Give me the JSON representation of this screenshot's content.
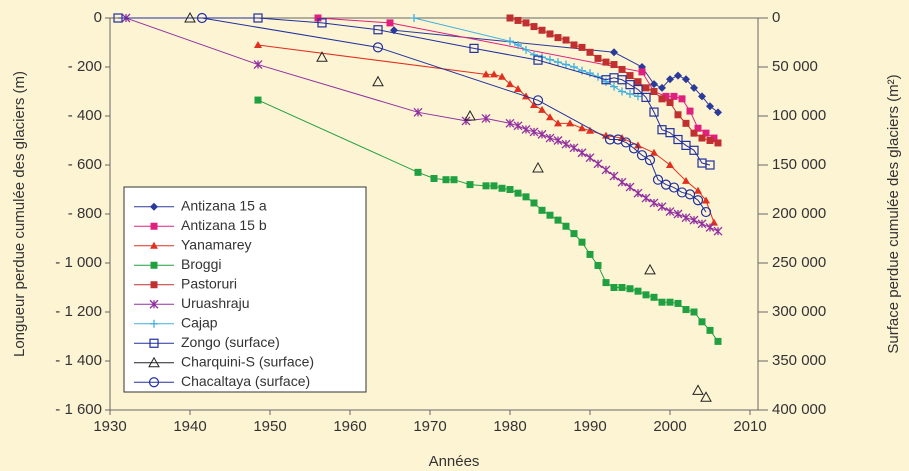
{
  "chart_data": {
    "type": "line",
    "xlabel": "Années",
    "ylabel": "Longueur perdue cumulée des glaciers (m)",
    "y2label": "Surface perdue cumulée des glaciers (m²)",
    "xlim": [
      1930,
      2011
    ],
    "xticks": [
      1930,
      1940,
      1950,
      1960,
      1970,
      1980,
      1990,
      2000,
      2010
    ],
    "ylim": [
      -1600,
      0
    ],
    "yticks": [
      {
        "value": -1600,
        "label": "- 1 600"
      },
      {
        "value": -1400,
        "label": "- 1 400"
      },
      {
        "value": -1200,
        "label": "- 1 200"
      },
      {
        "value": -1000,
        "label": "- 1 000"
      },
      {
        "value": -800,
        "label": "- 800"
      },
      {
        "value": -600,
        "label": "- 600"
      },
      {
        "value": -400,
        "label": "- 400"
      },
      {
        "value": -200,
        "label": "- 200"
      },
      0
    ],
    "y2lim": [
      400000,
      0
    ],
    "y2ticks": [
      0,
      {
        "value": 50000,
        "label": "50 000"
      },
      {
        "value": 100000,
        "label": "100 000"
      },
      {
        "value": 150000,
        "label": "150 000"
      },
      {
        "value": 200000,
        "label": "200 000"
      },
      {
        "value": 250000,
        "label": "250 000"
      },
      {
        "value": 300000,
        "label": "300 000"
      },
      {
        "value": 350000,
        "label": "350 000"
      },
      {
        "value": 400000,
        "label": "400 000"
      }
    ],
    "legend": "lower left",
    "series": [
      {
        "name": "Antizana 15 a",
        "color": "#2b3a9a",
        "marker": "diamond",
        "line": true,
        "x": [
          1965.5,
          1993,
          1996.5,
          1998,
          1999,
          2000,
          2001,
          2002,
          2003,
          2004,
          2005,
          2006
        ],
        "values": [
          -50,
          -140,
          -200,
          -270,
          -285,
          -250,
          -235,
          -250,
          -285,
          -320,
          -360,
          -385
        ]
      },
      {
        "name": "Antizana 15 b",
        "color": "#e0207f",
        "marker": "square",
        "line": true,
        "x": [
          1956,
          1965,
          1996.5,
          1998,
          1999.5,
          2000.5,
          2001.5,
          2002.5,
          2003.5,
          2004.5,
          2005.5
        ],
        "values": [
          0,
          -20,
          -220,
          -300,
          -320,
          -320,
          -330,
          -380,
          -450,
          -470,
          -490
        ]
      },
      {
        "name": "Yanamarey",
        "color": "#e03020",
        "marker": "triangle",
        "line": true,
        "x": [
          1948.5,
          1977,
          1978,
          1979,
          1980,
          1981,
          1982,
          1983,
          1984,
          1985,
          1986,
          1987.5,
          1989,
          1990,
          1992,
          1994,
          1996,
          1998,
          2000,
          2002,
          2003.5,
          2004.5,
          2005.5
        ],
        "values": [
          -110,
          -230,
          -230,
          -240,
          -270,
          -290,
          -320,
          -355,
          -375,
          -405,
          -430,
          -430,
          -450,
          -460,
          -480,
          -490,
          -520,
          -550,
          -600,
          -665,
          -705,
          -745,
          -835
        ]
      },
      {
        "name": "Broggi",
        "color": "#20a040",
        "marker": "square",
        "line": true,
        "x": [
          1948.5,
          1968.5,
          1970.5,
          1972,
          1973,
          1975,
          1977,
          1978,
          1979,
          1980,
          1981,
          1982,
          1983,
          1984,
          1985,
          1986,
          1987,
          1988,
          1989,
          1990,
          1991,
          1992,
          1993,
          1994,
          1995,
          1996,
          1997,
          1998,
          1999,
          2000,
          2001,
          2002,
          2003,
          2004,
          2005,
          2006
        ],
        "values": [
          -335,
          -630,
          -655,
          -660,
          -660,
          -680,
          -685,
          -685,
          -695,
          -700,
          -715,
          -730,
          -755,
          -785,
          -805,
          -825,
          -850,
          -880,
          -915,
          -965,
          -1010,
          -1080,
          -1100,
          -1100,
          -1105,
          -1115,
          -1130,
          -1140,
          -1160,
          -1160,
          -1165,
          -1190,
          -1200,
          -1240,
          -1275,
          -1320
        ]
      },
      {
        "name": "Pastoruri",
        "color": "#c03030",
        "marker": "square",
        "line": true,
        "x": [
          1980,
          1981,
          1982,
          1983,
          1984,
          1985,
          1986,
          1987,
          1988,
          1989,
          1990,
          1991,
          1992,
          1993,
          1994,
          1995,
          1996,
          1997,
          1998,
          1999,
          2000,
          2001,
          2002,
          2003,
          2004,
          2005,
          2006
        ],
        "values": [
          0,
          -10,
          -20,
          -35,
          -50,
          -65,
          -80,
          -90,
          -110,
          -120,
          -140,
          -165,
          -180,
          -190,
          -210,
          -235,
          -260,
          -285,
          -300,
          -330,
          -345,
          -395,
          -430,
          -470,
          -490,
          -500,
          -510
        ]
      },
      {
        "name": "Uruashraju",
        "color": "#9030a0",
        "marker": "x",
        "line": true,
        "x": [
          1932,
          1948.5,
          1968.5,
          1974.5,
          1977,
          1980,
          1981,
          1982,
          1983,
          1984,
          1985,
          1986,
          1987,
          1988,
          1989,
          1990,
          1991,
          1992,
          1993,
          1994,
          1995,
          1996,
          1997,
          1998,
          1999,
          2000,
          2001,
          2002,
          2003,
          2004,
          2005,
          2006
        ],
        "values": [
          0,
          -190,
          -385,
          -420,
          -410,
          -430,
          -440,
          -455,
          -465,
          -475,
          -490,
          -500,
          -515,
          -530,
          -550,
          -570,
          -595,
          -620,
          -645,
          -670,
          -690,
          -715,
          -735,
          -755,
          -770,
          -790,
          -800,
          -815,
          -825,
          -840,
          -855,
          -870
        ]
      },
      {
        "name": "Cajap",
        "color": "#40b0e0",
        "marker": "plus",
        "line": true,
        "x": [
          1968,
          1980,
          1981,
          1982,
          1983,
          1984,
          1985,
          1986,
          1987,
          1988,
          1989,
          1990,
          1991,
          1992,
          1993,
          1994,
          1995,
          1996
        ],
        "values": [
          0,
          -95,
          -110,
          -130,
          -150,
          -160,
          -170,
          -180,
          -190,
          -200,
          -215,
          -225,
          -240,
          -260,
          -280,
          -300,
          -310,
          -320
        ]
      },
      {
        "name": "Zongo (surface)",
        "color": "#2030a0",
        "marker": "open-square",
        "line": true,
        "axis": "y2",
        "x": [
          1931,
          1948.5,
          1956.5,
          1963.5,
          1975.5,
          1983.5,
          1992,
          1993,
          1994,
          1995,
          1996,
          1997,
          1998,
          1999,
          2000,
          2001,
          2002,
          2003,
          2004,
          2005
        ],
        "values": [
          0,
          0,
          5000,
          12000,
          31000,
          43000,
          63000,
          61000,
          63000,
          68000,
          73000,
          81000,
          96000,
          114000,
          117000,
          124000,
          130000,
          135000,
          148000,
          150000
        ]
      },
      {
        "name": "Charquini-S (surface)",
        "color": "#222222",
        "marker": "open-triangle",
        "line": false,
        "axis": "y2",
        "x": [
          1940,
          1956.5,
          1963.5,
          1975,
          1983.5,
          1997.5,
          2003.5,
          2004.5
        ],
        "values": [
          0,
          40000,
          65000,
          100000,
          153000,
          257000,
          380000,
          387000
        ]
      },
      {
        "name": "Chacaltaya (surface)",
        "color": "#2030a0",
        "marker": "open-circle",
        "line": true,
        "axis": "y2",
        "x": [
          1941.5,
          1963.5,
          1983.5,
          1992.5,
          1993.5,
          1994.5,
          1995.5,
          1996.5,
          1997.5,
          1998.5,
          1999.5,
          2000.5,
          2001.5,
          2002.5,
          2003.5,
          2004.5
        ],
        "values": [
          0,
          30000,
          84000,
          124000,
          124000,
          127000,
          133000,
          140000,
          145000,
          165000,
          170000,
          173000,
          178000,
          180000,
          186000,
          198000
        ]
      }
    ]
  }
}
